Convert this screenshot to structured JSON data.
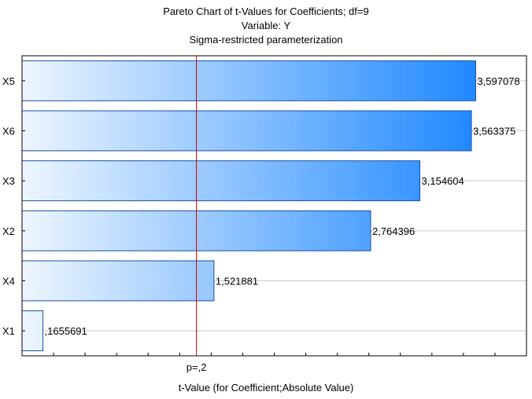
{
  "chart_data": {
    "type": "bar",
    "orientation": "horizontal",
    "title": "Pareto Chart of t-Values for Coefficients; df=9",
    "subtitle1": "Variable: Y",
    "subtitle2": "Sigma-restricted parameterization",
    "xlabel": "t-Value (for Coefficient;Absolute Value)",
    "categories": [
      "X5",
      "X6",
      "X3",
      "X2",
      "X4",
      "X1"
    ],
    "values": [
      3.597078,
      3.563375,
      3.154604,
      2.764396,
      1.521881,
      0.1655691
    ],
    "value_labels": [
      "3,597078",
      "3,563375",
      "3,154604",
      "2,764396",
      "1,521881",
      ",1655691"
    ],
    "reference_line": {
      "value": 1.383,
      "label": "p=,2",
      "color": "#cc0000"
    },
    "xlim": [
      0,
      4.0
    ],
    "grid": true,
    "bar_gradient": {
      "light": "#eef6ff",
      "dark": "#1f88ff"
    },
    "bar_border_color": "#1a4fa0"
  }
}
